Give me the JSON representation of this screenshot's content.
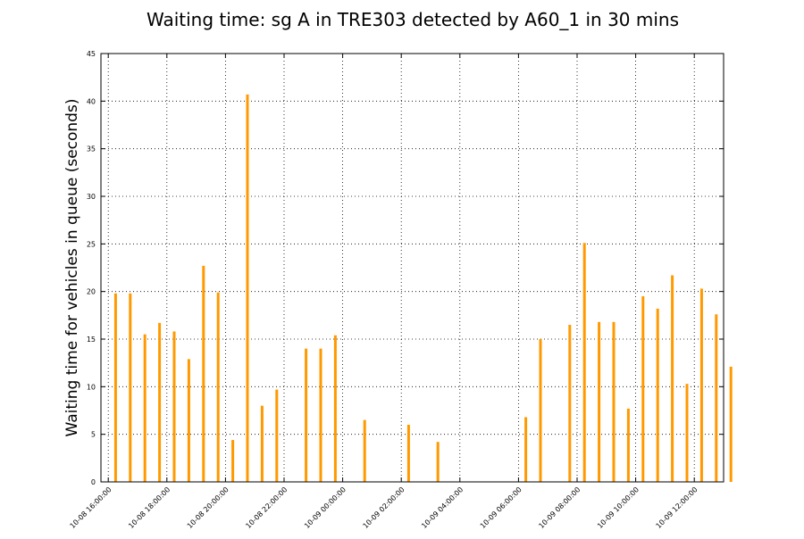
{
  "chart_data": {
    "type": "bar",
    "title": "Waiting time: sg A in TRE303 detected by A60_1 in 30 mins",
    "xlabel": "",
    "ylabel": "Waiting time for vehicles in queue (seconds)",
    "ylim": [
      0,
      45
    ],
    "xlim": [
      "10-08 15:45:00",
      "10-09 13:00:00"
    ],
    "yticks": [
      0,
      5,
      10,
      15,
      20,
      25,
      30,
      35,
      40,
      45
    ],
    "xtick_labels": [
      "10-08 16:00:00",
      "10-08 18:00:00",
      "10-08 20:00:00",
      "10-08 22:00:00",
      "10-09 00:00:00",
      "10-09 02:00:00",
      "10-09 04:00:00",
      "10-09 06:00:00",
      "10-09 08:00:00",
      "10-09 10:00:00",
      "10-09 12:00:00"
    ],
    "grid": true,
    "bar_color": "#ff9900",
    "points": [
      {
        "x": "10-08 16:15:00",
        "y": 19.8
      },
      {
        "x": "10-08 16:45:00",
        "y": 19.8
      },
      {
        "x": "10-08 17:15:00",
        "y": 15.5
      },
      {
        "x": "10-08 17:45:00",
        "y": 16.7
      },
      {
        "x": "10-08 18:15:00",
        "y": 15.8
      },
      {
        "x": "10-08 18:45:00",
        "y": 12.9
      },
      {
        "x": "10-08 19:15:00",
        "y": 22.7
      },
      {
        "x": "10-08 19:45:00",
        "y": 19.9
      },
      {
        "x": "10-08 20:15:00",
        "y": 4.4
      },
      {
        "x": "10-08 20:45:00",
        "y": 40.7
      },
      {
        "x": "10-08 21:15:00",
        "y": 8.0
      },
      {
        "x": "10-08 21:45:00",
        "y": 9.7
      },
      {
        "x": "10-08 22:45:00",
        "y": 14.0
      },
      {
        "x": "10-08 23:15:00",
        "y": 14.0
      },
      {
        "x": "10-08 23:45:00",
        "y": 15.4
      },
      {
        "x": "10-09 00:45:00",
        "y": 6.5
      },
      {
        "x": "10-09 02:15:00",
        "y": 6.0
      },
      {
        "x": "10-09 03:15:00",
        "y": 4.2
      },
      {
        "x": "10-09 06:15:00",
        "y": 6.8
      },
      {
        "x": "10-09 06:45:00",
        "y": 15.0
      },
      {
        "x": "10-09 07:45:00",
        "y": 16.5
      },
      {
        "x": "10-09 08:15:00",
        "y": 25.1
      },
      {
        "x": "10-09 08:45:00",
        "y": 16.8
      },
      {
        "x": "10-09 09:15:00",
        "y": 16.8
      },
      {
        "x": "10-09 09:45:00",
        "y": 7.7
      },
      {
        "x": "10-09 10:15:00",
        "y": 19.5
      },
      {
        "x": "10-09 10:45:00",
        "y": 18.2
      },
      {
        "x": "10-09 11:15:00",
        "y": 21.7
      },
      {
        "x": "10-09 11:45:00",
        "y": 10.3
      },
      {
        "x": "10-09 12:15:00",
        "y": 20.3
      },
      {
        "x": "10-09 12:45:00",
        "y": 17.6
      },
      {
        "x": "10-09 13:15:00",
        "y": 12.1
      }
    ]
  }
}
